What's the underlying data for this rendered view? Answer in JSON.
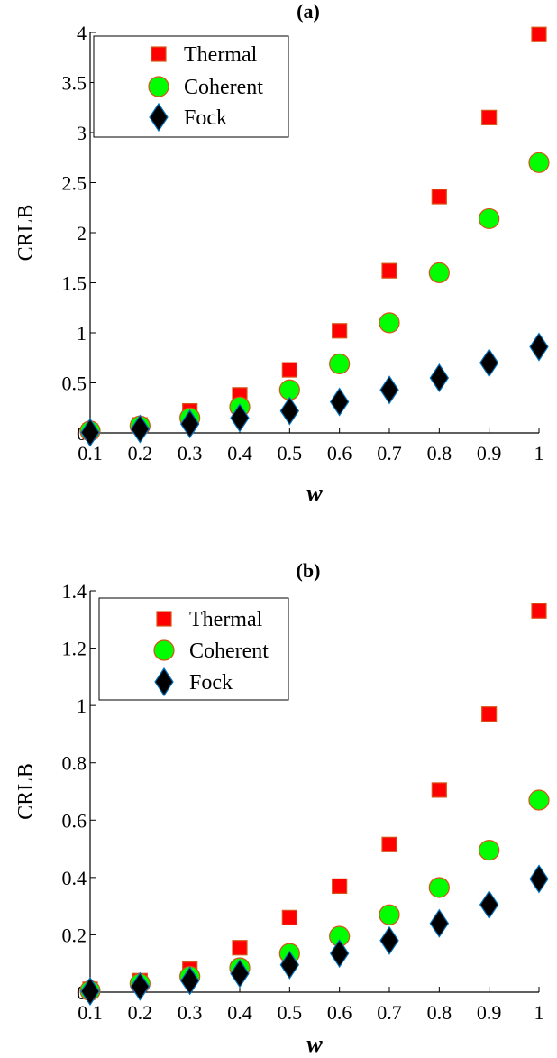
{
  "chart_data": [
    {
      "type": "scatter",
      "title": "(a)",
      "xlabel": "w",
      "ylabel": "CRLB",
      "xlim": [
        0.1,
        1
      ],
      "ylim": [
        0,
        4
      ],
      "x": [
        0.1,
        0.2,
        0.3,
        0.4,
        0.5,
        0.6,
        0.7,
        0.8,
        0.9,
        1
      ],
      "x_ticks": [
        "0.1",
        "0.2",
        "0.3",
        "0.4",
        "0.5",
        "0.6",
        "0.7",
        "0.8",
        "0.9",
        "1"
      ],
      "y_ticks": [
        {
          "value": 0,
          "label": "0"
        },
        {
          "value": 0.5,
          "label": "0.5"
        },
        {
          "value": 1,
          "label": "1"
        },
        {
          "value": 1.5,
          "label": "1.5"
        },
        {
          "value": 2,
          "label": "2"
        },
        {
          "value": 2.5,
          "label": "2.5"
        },
        {
          "value": 3,
          "label": "3"
        },
        {
          "value": 3.5,
          "label": "3.5"
        },
        {
          "value": 4,
          "label": "4"
        }
      ],
      "legend_position": "top-left",
      "grid": false,
      "series": [
        {
          "name": "Thermal",
          "marker": "square",
          "color": "#ff0000",
          "edge": "#d95319",
          "values": [
            0.02,
            0.08,
            0.22,
            0.38,
            0.63,
            1.02,
            1.62,
            2.36,
            3.15,
            3.98
          ]
        },
        {
          "name": "Coherent",
          "marker": "circle",
          "color": "#00ff00",
          "edge": "#d95319",
          "values": [
            0.02,
            0.07,
            0.15,
            0.26,
            0.43,
            0.69,
            1.1,
            1.6,
            2.14,
            2.7
          ]
        },
        {
          "name": "Fock",
          "marker": "diamond",
          "color": "#000000",
          "edge": "#0072bd",
          "values": [
            0.005,
            0.04,
            0.09,
            0.15,
            0.22,
            0.31,
            0.43,
            0.55,
            0.7,
            0.86
          ]
        }
      ]
    },
    {
      "type": "scatter",
      "title": "(b)",
      "xlabel": "w",
      "ylabel": "CRLB",
      "xlim": [
        0.1,
        1
      ],
      "ylim": [
        0,
        1.4
      ],
      "x": [
        0.1,
        0.2,
        0.3,
        0.4,
        0.5,
        0.6,
        0.7,
        0.8,
        0.9,
        1
      ],
      "x_ticks": [
        "0.1",
        "0.2",
        "0.3",
        "0.4",
        "0.5",
        "0.6",
        "0.7",
        "0.8",
        "0.9",
        "1"
      ],
      "y_ticks": [
        {
          "value": 0,
          "label": "0"
        },
        {
          "value": 0.2,
          "label": "0.2"
        },
        {
          "value": 0.4,
          "label": "0.4"
        },
        {
          "value": 0.6,
          "label": "0.6"
        },
        {
          "value": 0.8,
          "label": "0.8"
        },
        {
          "value": 1,
          "label": "1"
        },
        {
          "value": 1.2,
          "label": "1.2"
        },
        {
          "value": 1.4,
          "label": "1.4"
        }
      ],
      "legend_position": "top-left",
      "grid": false,
      "series": [
        {
          "name": "Thermal",
          "marker": "square",
          "color": "#ff0000",
          "edge": "#d95319",
          "values": [
            0.01,
            0.04,
            0.08,
            0.155,
            0.26,
            0.37,
            0.515,
            0.705,
            0.97,
            1.33
          ]
        },
        {
          "name": "Coherent",
          "marker": "circle",
          "color": "#00ff00",
          "edge": "#d95319",
          "values": [
            0.005,
            0.03,
            0.055,
            0.085,
            0.135,
            0.195,
            0.27,
            0.365,
            0.495,
            0.67
          ]
        },
        {
          "name": "Fock",
          "marker": "diamond",
          "color": "#000000",
          "edge": "#0072bd",
          "values": [
            0.003,
            0.02,
            0.04,
            0.065,
            0.095,
            0.135,
            0.18,
            0.24,
            0.305,
            0.395
          ]
        }
      ]
    }
  ]
}
